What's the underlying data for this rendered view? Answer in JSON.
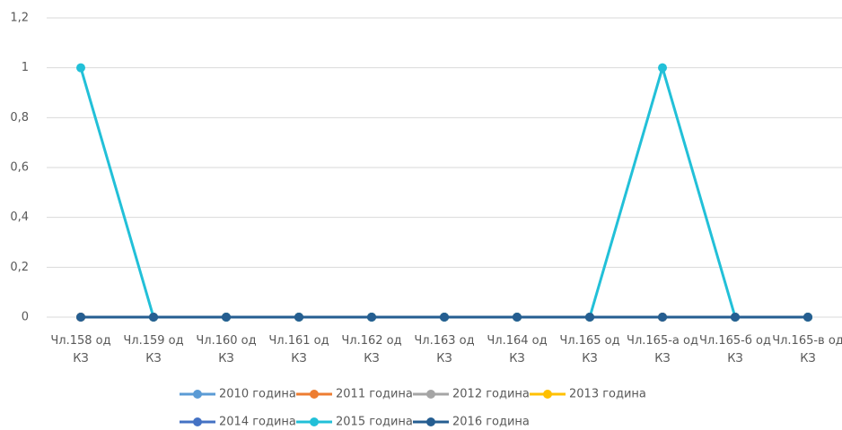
{
  "chart_data": {
    "type": "line",
    "categories": [
      "Чл.158 од КЗ",
      "Чл.159 од КЗ",
      "Чл.160 од КЗ",
      "Чл.161 од КЗ",
      "Чл.162 од КЗ",
      "Чл.163 од КЗ",
      "Чл.164 од КЗ",
      "Чл.165 од КЗ",
      "Чл.165-а од КЗ",
      "Чл.165-б од КЗ",
      "Чл.165-в од КЗ"
    ],
    "series": [
      {
        "name": "2010 година",
        "color": "#5b9bd5",
        "values": [
          0,
          0,
          0,
          0,
          0,
          0,
          0,
          0,
          0,
          0,
          0
        ]
      },
      {
        "name": "2011 година",
        "color": "#ed7d31",
        "values": [
          0,
          0,
          0,
          0,
          0,
          0,
          0,
          0,
          0,
          0,
          0
        ]
      },
      {
        "name": "2012 година",
        "color": "#a5a5a5",
        "values": [
          0,
          0,
          0,
          0,
          0,
          0,
          0,
          0,
          0,
          0,
          0
        ]
      },
      {
        "name": "2013 година",
        "color": "#ffc000",
        "values": [
          0,
          0,
          0,
          0,
          0,
          0,
          0,
          0,
          0,
          0,
          0
        ]
      },
      {
        "name": "2014 година",
        "color": "#4472c4",
        "values": [
          0,
          0,
          0,
          0,
          0,
          0,
          0,
          0,
          0,
          0,
          0
        ]
      },
      {
        "name": "2015 година",
        "color": "#22c0d8",
        "values": [
          1,
          0,
          0,
          0,
          0,
          0,
          0,
          0,
          1,
          0,
          0
        ]
      },
      {
        "name": "2016 година",
        "color": "#255e91",
        "values": [
          0,
          0,
          0,
          0,
          0,
          0,
          0,
          0,
          0,
          0,
          0
        ]
      }
    ],
    "ylim": [
      0,
      1.2
    ],
    "yticks": [
      0,
      {
        "value": 0.2,
        "label": "0,2"
      },
      {
        "value": 0.4,
        "label": "0,4"
      },
      {
        "value": 0.6,
        "label": "0,6"
      },
      {
        "value": 0.8,
        "label": "0,8"
      },
      1,
      {
        "value": 1.2,
        "label": "1,2"
      }
    ],
    "grid": true,
    "legend": "bottom"
  }
}
